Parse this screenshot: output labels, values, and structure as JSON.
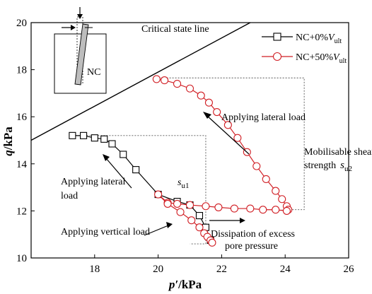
{
  "chart_data": {
    "type": "line",
    "xlabel_italic": "p′",
    "xlabel_unit": "/kPa",
    "ylabel_italic": "q",
    "ylabel_unit": "/kPa",
    "xlim": [
      16,
      26
    ],
    "ylim": [
      10,
      20
    ],
    "xticks": [
      18,
      20,
      22,
      24,
      26
    ],
    "yticks": [
      10,
      12,
      14,
      16,
      18,
      20
    ],
    "legend_position": "top-right",
    "series": [
      {
        "name_main": "NC+0%",
        "name_var": "V",
        "name_sub": "ult",
        "color": "#000000",
        "marker": "square",
        "x": [
          17.3,
          17.65,
          18.0,
          18.3,
          18.55,
          18.9,
          19.3,
          20.0,
          20.6,
          21.0,
          21.3,
          21.5,
          21.65
        ],
        "y": [
          15.2,
          15.2,
          15.1,
          15.05,
          14.85,
          14.4,
          13.75,
          12.7,
          12.4,
          12.25,
          11.8,
          11.3,
          10.75
        ]
      },
      {
        "name_main": "NC+50%",
        "name_var": "V",
        "name_sub": "ult",
        "color": "#d11f25",
        "marker": "circle",
        "x": [
          19.95,
          20.2,
          20.6,
          21.0,
          21.35,
          21.6,
          21.85,
          22.2,
          22.5,
          22.8,
          23.1,
          23.4,
          23.7,
          23.9,
          24.05,
          24.1,
          24.05,
          23.7,
          23.3,
          22.9,
          22.4,
          21.9,
          21.5,
          21.0,
          20.6,
          20.3,
          20.0,
          20.3,
          20.7,
          21.05,
          21.3,
          21.45,
          21.55,
          21.65,
          21.7
        ],
        "y": [
          17.6,
          17.55,
          17.4,
          17.2,
          16.9,
          16.6,
          16.2,
          15.65,
          15.1,
          14.5,
          13.9,
          13.35,
          12.85,
          12.5,
          12.2,
          12.05,
          12.0,
          12.05,
          12.05,
          12.1,
          12.1,
          12.15,
          12.2,
          12.25,
          12.3,
          12.35,
          12.7,
          12.3,
          11.95,
          11.6,
          11.3,
          11.05,
          10.9,
          10.75,
          10.65
        ]
      }
    ],
    "csl_label": "Critical state line",
    "csl_points": [
      [
        16,
        15.0
      ],
      [
        22.9,
        20
      ]
    ],
    "annotations": {
      "lateral_red": "Applying lateral load",
      "lateral_black_1": "Applying lateral",
      "lateral_black_2": "load",
      "vertical": "Applying vertical load",
      "dissipation_1": "Dissipation of excess",
      "dissipation_2": "pore pressure",
      "mob_1": "Mobilisable shear",
      "mob_2": "strength",
      "su1_main": "s",
      "su1_sub": "u1",
      "su2_main": "s",
      "su2_sub": "u2",
      "inset_label": "NC"
    },
    "guides": {
      "su1_x": 21.5,
      "su1_y_top": 15.2,
      "su1_y_bottom": 10.6,
      "su2_x": 24.6,
      "su2_y_top": 17.65,
      "su2_y_bottom": 12.05
    }
  }
}
